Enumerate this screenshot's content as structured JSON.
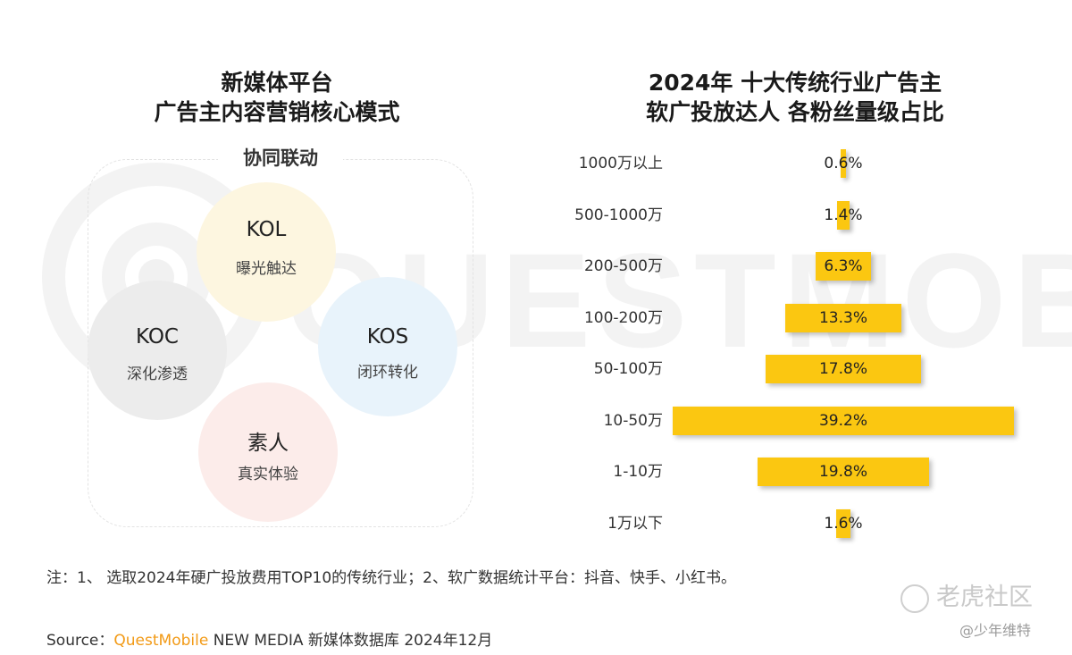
{
  "left_panel": {
    "title_line1": "新媒体平台",
    "title_line2": "广告主内容营销核心模式",
    "frame_label": "协同联动",
    "circles": [
      {
        "name": "KOL",
        "desc": "曝光触达",
        "color": "#fdf6e0"
      },
      {
        "name": "KOC",
        "desc": "深化渗透",
        "color": "#ececec"
      },
      {
        "name": "KOS",
        "desc": "闭环转化",
        "color": "#e8f3fb"
      },
      {
        "name": "素人",
        "desc": "真实体验",
        "color": "#fcecea"
      }
    ]
  },
  "chart_data": {
    "type": "bar",
    "orientation": "horizontal-centered",
    "title": "2024年 十大传统行业广告主 软广投放达人 各粉丝量级占比",
    "title_line1": "2024年 十大传统行业广告主",
    "title_line2": "软广投放达人 各粉丝量级占比",
    "categories": [
      "1000万以上",
      "500-1000万",
      "200-500万",
      "100-200万",
      "50-100万",
      "10-50万",
      "1-10万",
      "1万以下"
    ],
    "values": [
      0.6,
      1.4,
      6.3,
      13.3,
      17.8,
      39.2,
      19.8,
      1.6
    ],
    "value_labels": [
      "0.6%",
      "1.4%",
      "6.3%",
      "13.3%",
      "17.8%",
      "39.2%",
      "19.8%",
      "1.6%"
    ],
    "unit": "%",
    "bar_color": "#fbc711"
  },
  "footer": {
    "note": "注：1、 选取2024年硬广投放费用TOP10的传统行业；2、软广数据统计平台：抖音、快手、小红书。",
    "source_prefix": "Source：",
    "source_brand": "QuestMobile",
    "source_rest": " NEW MEDIA 新媒体数据库 2024年12月"
  },
  "watermark_text": "QUESTMOBILE",
  "overlay": {
    "site_name": "老虎社区",
    "author_handle": "@少年维特"
  }
}
